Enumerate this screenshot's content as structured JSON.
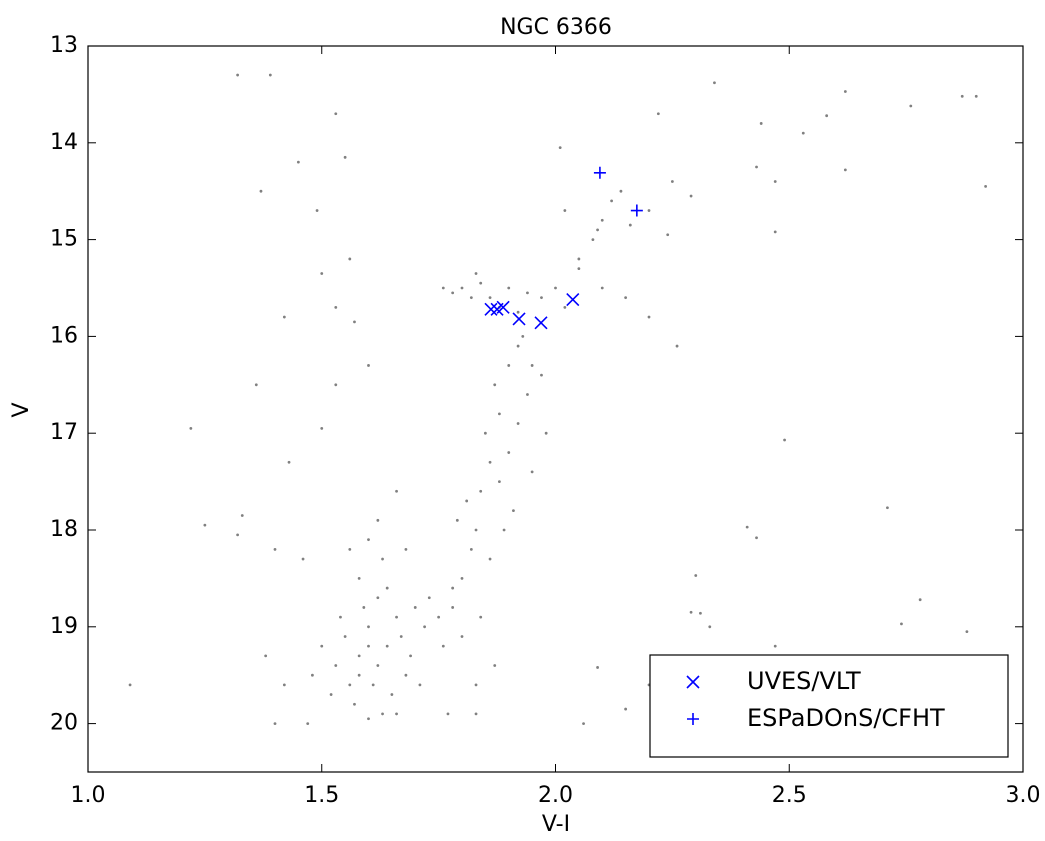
{
  "chart_data": {
    "type": "scatter",
    "title": "NGC 6366",
    "x_label": "V-I",
    "y_label": "V",
    "xlim": [
      1.0,
      3.0
    ],
    "ylim": [
      20.5,
      13
    ],
    "xticks": [
      {
        "value": 1.0,
        "label": "1.0"
      },
      {
        "value": 1.5,
        "label": "1.5"
      },
      {
        "value": 2.0,
        "label": "2.0"
      },
      {
        "value": 2.5,
        "label": "2.5"
      },
      {
        "value": 3.0,
        "label": "3.0"
      }
    ],
    "yticks": [
      13,
      14,
      15,
      16,
      17,
      18,
      19,
      20
    ],
    "legend": "lower right",
    "series": [
      {
        "color": "#808080",
        "marker": "point",
        "x": [
          1.55,
          1.58,
          1.6,
          1.62,
          1.64,
          1.66,
          1.61,
          1.57,
          1.63,
          1.59,
          1.68,
          1.7,
          1.72,
          1.53,
          1.56,
          1.65,
          1.67,
          1.6,
          1.62,
          1.58,
          1.54,
          1.69,
          1.73,
          1.75,
          1.52,
          1.64,
          1.71,
          1.66,
          1.6,
          1.5,
          1.48,
          1.76,
          1.78,
          1.63,
          1.6,
          1.58,
          1.66,
          1.62,
          1.68,
          1.56,
          1.8,
          1.82,
          1.79,
          1.84,
          1.86,
          1.85,
          1.88,
          1.87,
          1.9,
          1.92,
          1.83,
          1.81,
          1.88,
          1.9,
          1.92,
          1.94,
          1.95,
          1.93,
          1.97,
          1.86,
          1.89,
          1.78,
          1.91,
          1.84,
          1.8,
          1.95,
          1.98,
          1.87,
          1.83,
          1.77,
          1.78,
          1.8,
          1.82,
          1.84,
          1.86,
          1.9,
          1.94,
          1.97,
          2.0,
          1.83,
          1.88,
          1.92,
          2.02,
          2.05,
          1.76,
          2.08,
          2.1,
          2.12,
          2.14,
          2.2,
          2.25,
          2.05,
          2.1,
          2.15,
          2.2,
          2.01,
          2.02,
          2.09,
          2.16,
          2.24,
          2.29,
          2.22,
          1.32,
          1.39,
          1.53,
          1.45,
          1.55,
          1.37,
          1.49,
          1.5,
          1.56,
          1.53,
          1.57,
          1.42,
          1.36,
          1.53,
          1.6,
          1.5,
          1.22,
          1.43,
          1.33,
          1.25,
          1.32,
          1.4,
          1.46,
          1.09,
          1.38,
          1.42,
          1.47,
          1.4,
          2.34,
          2.44,
          2.53,
          2.58,
          2.62,
          2.76,
          2.87,
          2.9,
          2.43,
          2.47,
          2.62,
          2.92,
          2.47,
          2.26,
          2.49,
          2.41,
          2.43,
          2.71,
          2.3,
          2.78,
          2.29,
          2.31,
          2.33,
          2.47,
          2.74,
          2.88,
          2.2,
          2.15,
          2.06,
          1.83,
          2.09
        ],
        "values": [
          19.1,
          19.3,
          19.0,
          19.4,
          19.2,
          18.9,
          19.6,
          19.8,
          19.9,
          18.8,
          19.5,
          18.8,
          19.0,
          19.4,
          19.6,
          19.7,
          19.1,
          19.2,
          18.7,
          19.5,
          18.9,
          19.3,
          18.7,
          18.9,
          19.7,
          18.6,
          19.6,
          19.9,
          19.95,
          19.2,
          19.5,
          19.2,
          18.8,
          18.3,
          18.1,
          18.5,
          17.6,
          17.9,
          18.2,
          18.2,
          18.5,
          18.2,
          17.9,
          17.6,
          17.3,
          17.0,
          16.8,
          16.5,
          16.3,
          16.1,
          18.0,
          17.7,
          17.5,
          17.2,
          16.9,
          16.6,
          16.3,
          16.0,
          16.4,
          18.3,
          18.0,
          18.6,
          17.8,
          18.9,
          19.1,
          17.4,
          17.0,
          19.4,
          19.6,
          19.9,
          15.55,
          15.5,
          15.6,
          15.45,
          15.6,
          15.5,
          15.55,
          15.6,
          15.5,
          15.35,
          15.7,
          15.75,
          15.7,
          15.3,
          15.5,
          15.0,
          14.8,
          14.6,
          14.5,
          14.7,
          14.4,
          15.2,
          15.5,
          15.6,
          15.8,
          14.05,
          14.7,
          14.9,
          14.85,
          14.95,
          14.55,
          13.7,
          13.3,
          13.3,
          13.7,
          14.2,
          14.15,
          14.5,
          14.7,
          15.35,
          15.2,
          15.7,
          15.85,
          15.8,
          16.5,
          16.5,
          16.3,
          16.95,
          16.95,
          17.3,
          17.85,
          17.95,
          18.05,
          18.2,
          18.3,
          19.6,
          19.3,
          19.6,
          20.0,
          20.0,
          13.38,
          13.8,
          13.9,
          13.72,
          13.47,
          13.62,
          13.52,
          13.52,
          14.25,
          14.4,
          14.28,
          14.45,
          14.92,
          16.1,
          17.07,
          17.97,
          18.08,
          17.77,
          18.47,
          18.72,
          18.85,
          18.86,
          19.0,
          19.2,
          18.97,
          19.05,
          19.6,
          19.85,
          20.0,
          19.9,
          19.42
        ]
      },
      {
        "name": "UVES/VLT",
        "color": "#0000ff",
        "marker": "x",
        "x": [
          1.862,
          1.875,
          1.888,
          1.922,
          1.969,
          2.037
        ],
        "values": [
          15.72,
          15.72,
          15.7,
          15.82,
          15.86,
          15.62
        ]
      },
      {
        "name": "ESPaDOnS/CFHT",
        "color": "#0000ff",
        "marker": "+",
        "x": [
          2.095,
          2.174
        ],
        "values": [
          14.31,
          14.7
        ]
      }
    ]
  }
}
